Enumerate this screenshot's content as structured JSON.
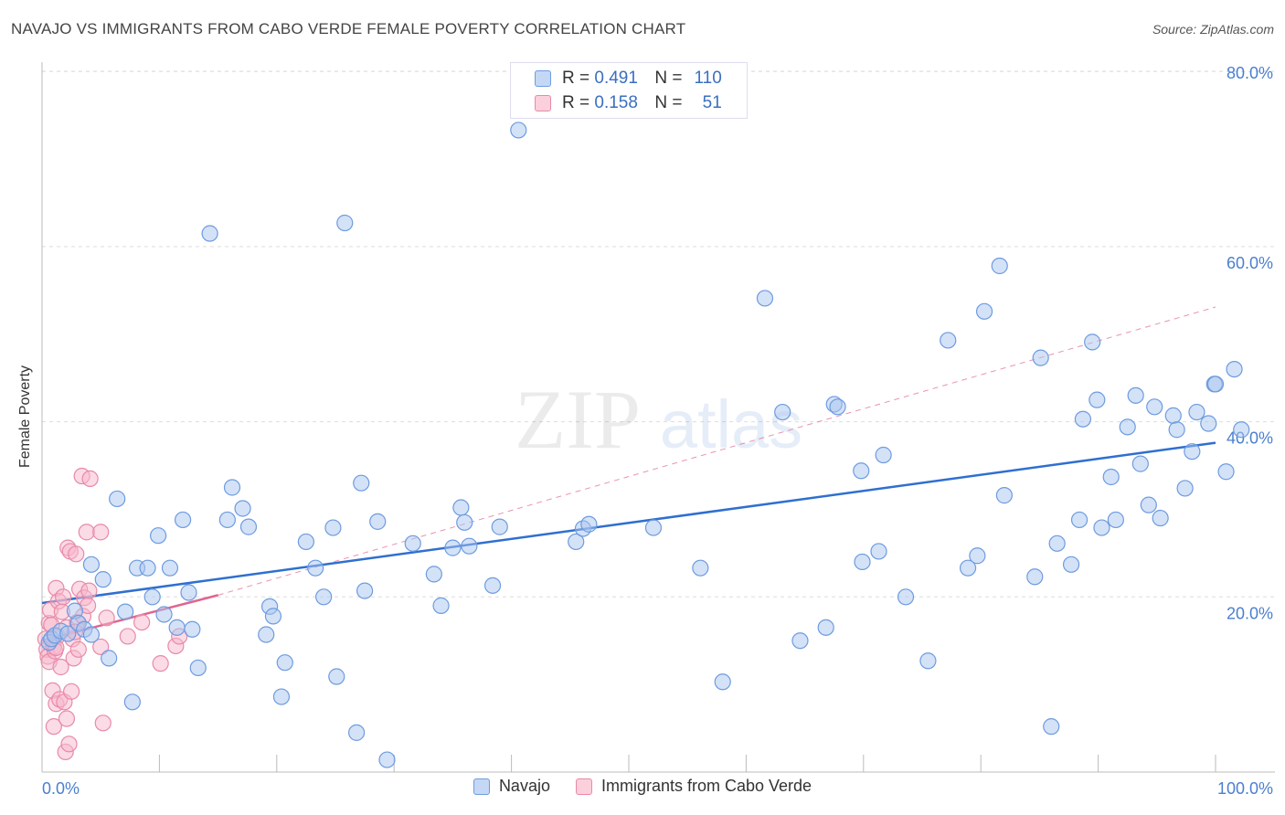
{
  "title": "NAVAJO VS IMMIGRANTS FROM CABO VERDE FEMALE POVERTY CORRELATION CHART",
  "source": "Source: ZipAtlas.com",
  "watermark": {
    "zip": "ZIP",
    "atlas": "atlas"
  },
  "legend": {
    "navajo": {
      "r_label": "R =",
      "r_value": "0.491",
      "n_label": "N =",
      "n_value": "110"
    },
    "cabo": {
      "r_label": "R =",
      "r_value": "0.158",
      "n_label": "N =",
      "n_value": "51"
    }
  },
  "colors": {
    "navajo_fill": "#a9c6ef",
    "navajo_stroke": "#6d9be0",
    "navajo_line": "#2f6fd0",
    "cabo_fill": "#f7b8cb",
    "cabo_stroke": "#e88aa8",
    "cabo_line": "#e0658f",
    "tick_text": "#4a7fcf",
    "grid": "#dddddd"
  },
  "chart_data": {
    "type": "scatter",
    "title": "NAVAJO VS IMMIGRANTS FROM CABO VERDE FEMALE POVERTY CORRELATION CHART",
    "xlabel": "",
    "ylabel": "Female Poverty",
    "xlim": [
      0,
      100
    ],
    "ylim": [
      0,
      85
    ],
    "x_tick_labels": [
      "0.0%",
      "100.0%"
    ],
    "y_ticks": [
      20,
      40,
      60,
      80
    ],
    "y_tick_labels": [
      "20.0%",
      "40.0%",
      "60.0%",
      "80.0%"
    ],
    "legend_position": "top-center",
    "series": [
      {
        "name": "Navajo",
        "r": 0.491,
        "n": 110,
        "trend": {
          "x0": 0,
          "y0": 19.3,
          "x1": 100,
          "y1": 37.6
        },
        "points": [
          [
            0.6,
            14.8
          ],
          [
            0.8,
            15.2
          ],
          [
            1.1,
            15.6
          ],
          [
            1.6,
            16.1
          ],
          [
            2.2,
            15.8
          ],
          [
            2.8,
            18.4
          ],
          [
            3.1,
            17.0
          ],
          [
            3.6,
            16.3
          ],
          [
            4.2,
            15.7
          ],
          [
            4.2,
            23.7
          ],
          [
            5.2,
            22.0
          ],
          [
            5.7,
            13.0
          ],
          [
            6.4,
            31.2
          ],
          [
            7.1,
            18.3
          ],
          [
            7.7,
            8.0
          ],
          [
            8.1,
            23.3
          ],
          [
            9.0,
            23.3
          ],
          [
            9.4,
            20.0
          ],
          [
            9.9,
            27.0
          ],
          [
            10.4,
            18.0
          ],
          [
            10.9,
            23.3
          ],
          [
            11.5,
            16.5
          ],
          [
            12.0,
            28.8
          ],
          [
            12.5,
            20.5
          ],
          [
            12.8,
            16.3
          ],
          [
            13.3,
            11.9
          ],
          [
            14.3,
            61.5
          ],
          [
            15.8,
            28.8
          ],
          [
            16.2,
            32.5
          ],
          [
            17.1,
            30.1
          ],
          [
            17.6,
            28.0
          ],
          [
            19.1,
            15.7
          ],
          [
            19.4,
            18.9
          ],
          [
            19.7,
            17.8
          ],
          [
            20.4,
            8.6
          ],
          [
            20.7,
            12.5
          ],
          [
            22.5,
            26.3
          ],
          [
            23.3,
            23.3
          ],
          [
            24.0,
            20.0
          ],
          [
            24.8,
            27.9
          ],
          [
            25.1,
            10.9
          ],
          [
            25.8,
            62.7
          ],
          [
            26.8,
            4.5
          ],
          [
            27.2,
            33.0
          ],
          [
            27.5,
            20.7
          ],
          [
            28.6,
            28.6
          ],
          [
            29.4,
            1.4
          ],
          [
            31.6,
            26.1
          ],
          [
            33.4,
            22.6
          ],
          [
            34.0,
            19.0
          ],
          [
            35.0,
            25.6
          ],
          [
            35.7,
            30.2
          ],
          [
            36.0,
            28.5
          ],
          [
            36.4,
            25.8
          ],
          [
            38.4,
            21.3
          ],
          [
            39.0,
            28.0
          ],
          [
            40.6,
            73.3
          ],
          [
            45.5,
            26.3
          ],
          [
            46.1,
            27.8
          ],
          [
            46.6,
            28.3
          ],
          [
            52.1,
            27.9
          ],
          [
            56.1,
            23.3
          ],
          [
            58.0,
            10.3
          ],
          [
            61.6,
            54.1
          ],
          [
            63.1,
            41.1
          ],
          [
            64.6,
            15.0
          ],
          [
            66.8,
            16.5
          ],
          [
            67.5,
            42.0
          ],
          [
            67.8,
            41.7
          ],
          [
            69.8,
            34.4
          ],
          [
            69.9,
            24.0
          ],
          [
            71.3,
            25.2
          ],
          [
            71.7,
            36.2
          ],
          [
            73.6,
            20.0
          ],
          [
            75.5,
            12.7
          ],
          [
            77.2,
            49.3
          ],
          [
            78.9,
            23.3
          ],
          [
            79.7,
            24.7
          ],
          [
            80.3,
            52.6
          ],
          [
            81.6,
            57.8
          ],
          [
            82.0,
            31.6
          ],
          [
            84.6,
            22.3
          ],
          [
            85.1,
            47.3
          ],
          [
            86.0,
            5.2
          ],
          [
            86.5,
            26.1
          ],
          [
            87.7,
            23.7
          ],
          [
            88.4,
            28.8
          ],
          [
            88.7,
            40.3
          ],
          [
            89.5,
            49.1
          ],
          [
            89.9,
            42.5
          ],
          [
            90.3,
            27.9
          ],
          [
            91.1,
            33.7
          ],
          [
            91.5,
            28.8
          ],
          [
            92.5,
            39.4
          ],
          [
            93.2,
            43.0
          ],
          [
            93.6,
            35.2
          ],
          [
            94.3,
            30.5
          ],
          [
            94.8,
            41.7
          ],
          [
            95.3,
            29.0
          ],
          [
            96.4,
            40.7
          ],
          [
            96.7,
            39.1
          ],
          [
            97.4,
            32.4
          ],
          [
            98.0,
            36.6
          ],
          [
            98.4,
            41.1
          ],
          [
            99.4,
            39.8
          ],
          [
            99.9,
            44.3
          ],
          [
            100.0,
            44.3
          ],
          [
            100.9,
            34.3
          ],
          [
            101.6,
            46.0
          ],
          [
            102.2,
            39.1
          ]
        ]
      },
      {
        "name": "Immigrants from Cabo Verde",
        "r": 0.158,
        "n": 51,
        "trend": {
          "x0": 0,
          "y0": 15.0,
          "x1": 15,
          "y1": 20.2
        },
        "trend_ext": {
          "x0": 15,
          "y0": 20.2,
          "x1": 100,
          "y1": 53.1
        },
        "points": [
          [
            0.3,
            15.2
          ],
          [
            0.4,
            14.0
          ],
          [
            0.5,
            13.2
          ],
          [
            0.6,
            17.0
          ],
          [
            0.6,
            12.6
          ],
          [
            0.7,
            18.5
          ],
          [
            0.8,
            16.8
          ],
          [
            0.9,
            9.3
          ],
          [
            1.0,
            5.2
          ],
          [
            1.0,
            14.3
          ],
          [
            1.1,
            13.8
          ],
          [
            1.2,
            21.0
          ],
          [
            1.2,
            7.8
          ],
          [
            1.3,
            15.5
          ],
          [
            1.4,
            19.5
          ],
          [
            1.5,
            8.3
          ],
          [
            1.6,
            12.0
          ],
          [
            1.7,
            18.3
          ],
          [
            1.8,
            20.0
          ],
          [
            1.9,
            8.0
          ],
          [
            2.0,
            2.3
          ],
          [
            2.1,
            6.1
          ],
          [
            2.1,
            16.5
          ],
          [
            2.2,
            25.6
          ],
          [
            2.3,
            3.2
          ],
          [
            2.4,
            25.2
          ],
          [
            2.5,
            9.2
          ],
          [
            2.6,
            15.2
          ],
          [
            2.7,
            13.0
          ],
          [
            2.9,
            24.9
          ],
          [
            3.0,
            17.1
          ],
          [
            3.1,
            14.0
          ],
          [
            3.2,
            20.9
          ],
          [
            3.4,
            33.8
          ],
          [
            3.5,
            17.8
          ],
          [
            3.6,
            19.9
          ],
          [
            3.8,
            27.4
          ],
          [
            3.9,
            19.0
          ],
          [
            4.0,
            20.7
          ],
          [
            4.1,
            33.5
          ],
          [
            5.0,
            27.4
          ],
          [
            5.0,
            14.3
          ],
          [
            5.2,
            5.6
          ],
          [
            5.5,
            17.6
          ],
          [
            7.3,
            15.5
          ],
          [
            8.5,
            17.1
          ],
          [
            10.1,
            12.4
          ],
          [
            11.4,
            14.4
          ],
          [
            11.7,
            15.5
          ],
          [
            1.2,
            14.2
          ],
          [
            2.8,
            16.0
          ]
        ]
      }
    ]
  }
}
